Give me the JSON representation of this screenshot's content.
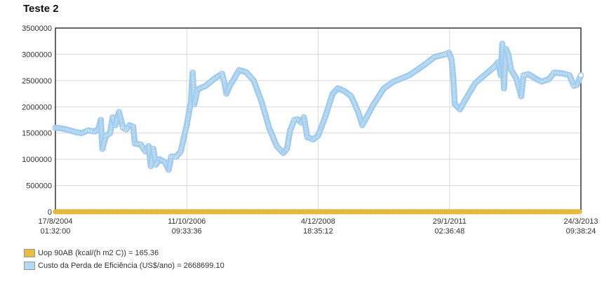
{
  "title": "Teste 2",
  "colors": {
    "series_uop": "#e8bd40",
    "series_custo": "#b5d9f5",
    "series_custo_stroke": "#9ecbf0",
    "axis": "#333333",
    "grid": "#d9d9d9"
  },
  "chart_data": {
    "type": "scatter",
    "title": "Teste 2",
    "xlabel": "",
    "ylabel": "",
    "ylim": [
      0,
      3500000
    ],
    "yticks": [
      "0",
      "500000",
      "1000000",
      "1500000",
      "2000000",
      "2500000",
      "3000000",
      "3500000"
    ],
    "yticks_values": [
      0,
      500000,
      1000000,
      1500000,
      2000000,
      2500000,
      3000000,
      3500000
    ],
    "xlim": [
      "2004-08-17",
      "2013-03-24"
    ],
    "xticks": [
      {
        "date": "2004-08-17",
        "line1": "17/8/2004",
        "line2": "01:32:00"
      },
      {
        "date": "2006-10-11",
        "line1": "11/10/2006",
        "line2": "09:33:36"
      },
      {
        "date": "2008-12-04",
        "line1": "4/12/2008",
        "line2": "18:35:12"
      },
      {
        "date": "2011-01-29",
        "line1": "29/1/2011",
        "line2": "02:36:48"
      },
      {
        "date": "2013-03-24",
        "line1": "24/3/2013",
        "line2": "09:38:24"
      }
    ],
    "grid": true,
    "legend_position": "bottom-left",
    "series": [
      {
        "name": "Uop 90AB (kcal/(h m2 C)) = 165.36",
        "y_constant": 165.36
      },
      {
        "name": "Custo da Perda de Eficiência (US$/ano) = 2668699.10",
        "points": [
          [
            "2004-08-17",
            1600000
          ],
          [
            "2004-09-20",
            1590000
          ],
          [
            "2004-11-01",
            1560000
          ],
          [
            "2004-12-15",
            1520000
          ],
          [
            "2005-01-20",
            1500000
          ],
          [
            "2005-03-01",
            1550000
          ],
          [
            "2005-04-10",
            1530000
          ],
          [
            "2005-05-01",
            1580000
          ],
          [
            "2005-05-15",
            1750000
          ],
          [
            "2005-05-25",
            1200000
          ],
          [
            "2005-06-15",
            1450000
          ],
          [
            "2005-07-10",
            1500000
          ],
          [
            "2005-07-25",
            1800000
          ],
          [
            "2005-08-10",
            1650000
          ],
          [
            "2005-09-01",
            1900000
          ],
          [
            "2005-09-25",
            1600000
          ],
          [
            "2005-10-15",
            1570000
          ],
          [
            "2005-11-01",
            1650000
          ],
          [
            "2005-11-25",
            1620000
          ],
          [
            "2005-12-05",
            1300000
          ],
          [
            "2006-01-10",
            1280000
          ],
          [
            "2006-02-05",
            1150000
          ],
          [
            "2006-02-25",
            1250000
          ],
          [
            "2006-03-10",
            870000
          ],
          [
            "2006-03-25",
            1200000
          ],
          [
            "2006-04-10",
            900000
          ],
          [
            "2006-05-01",
            1000000
          ],
          [
            "2006-06-01",
            950000
          ],
          [
            "2006-06-25",
            800000
          ],
          [
            "2006-07-10",
            1050000
          ],
          [
            "2006-08-10",
            1050000
          ],
          [
            "2006-09-05",
            1150000
          ],
          [
            "2006-10-11",
            1650000
          ],
          [
            "2006-11-05",
            2100000
          ],
          [
            "2006-11-15",
            2650000
          ],
          [
            "2006-11-25",
            2050000
          ],
          [
            "2006-12-15",
            2330000
          ],
          [
            "2007-02-01",
            2400000
          ],
          [
            "2007-04-01",
            2550000
          ],
          [
            "2007-05-10",
            2630000
          ],
          [
            "2007-05-25",
            2450000
          ],
          [
            "2007-06-05",
            2250000
          ],
          [
            "2007-06-25",
            2400000
          ],
          [
            "2007-07-15",
            2500000
          ],
          [
            "2007-08-20",
            2700000
          ],
          [
            "2007-10-01",
            2660000
          ],
          [
            "2007-11-15",
            2500000
          ],
          [
            "2008-01-01",
            2100000
          ],
          [
            "2008-02-15",
            1600000
          ],
          [
            "2008-04-01",
            1250000
          ],
          [
            "2008-05-10",
            1120000
          ],
          [
            "2008-06-01",
            1200000
          ],
          [
            "2008-06-20",
            1550000
          ],
          [
            "2008-07-15",
            1750000
          ],
          [
            "2008-08-05",
            1760000
          ],
          [
            "2008-08-25",
            1700000
          ],
          [
            "2008-09-10",
            1800000
          ],
          [
            "2008-10-01",
            1420000
          ],
          [
            "2008-11-05",
            1380000
          ],
          [
            "2008-12-04",
            1450000
          ],
          [
            "2009-01-15",
            1800000
          ],
          [
            "2009-03-01",
            2250000
          ],
          [
            "2009-04-01",
            2350000
          ],
          [
            "2009-05-10",
            2300000
          ],
          [
            "2009-06-20",
            2200000
          ],
          [
            "2009-08-01",
            1900000
          ],
          [
            "2009-08-25",
            1650000
          ],
          [
            "2009-09-20",
            1800000
          ],
          [
            "2009-11-01",
            2050000
          ],
          [
            "2010-01-01",
            2350000
          ],
          [
            "2010-03-01",
            2480000
          ],
          [
            "2010-06-01",
            2600000
          ],
          [
            "2010-09-01",
            2800000
          ],
          [
            "2010-11-01",
            2950000
          ],
          [
            "2011-01-05",
            3000000
          ],
          [
            "2011-01-25",
            3030000
          ],
          [
            "2011-02-10",
            2900000
          ],
          [
            "2011-02-20",
            2550000
          ],
          [
            "2011-03-01",
            2050000
          ],
          [
            "2011-04-01",
            1950000
          ],
          [
            "2011-05-15",
            2200000
          ],
          [
            "2011-07-01",
            2450000
          ],
          [
            "2011-09-01",
            2620000
          ],
          [
            "2011-10-20",
            2750000
          ],
          [
            "2011-11-15",
            2850000
          ],
          [
            "2011-12-01",
            2600000
          ],
          [
            "2011-12-10",
            3200000
          ],
          [
            "2011-12-20",
            2350000
          ],
          [
            "2012-01-01",
            3100000
          ],
          [
            "2012-01-15",
            3000000
          ],
          [
            "2012-02-01",
            2700000
          ],
          [
            "2012-03-01",
            2550000
          ],
          [
            "2012-03-20",
            2350000
          ],
          [
            "2012-04-01",
            2200000
          ],
          [
            "2012-04-15",
            2600000
          ],
          [
            "2012-05-15",
            2620000
          ],
          [
            "2012-07-01",
            2530000
          ],
          [
            "2012-08-01",
            2480000
          ],
          [
            "2012-09-15",
            2530000
          ],
          [
            "2012-10-15",
            2650000
          ],
          [
            "2012-12-01",
            2640000
          ],
          [
            "2013-01-15",
            2600000
          ],
          [
            "2013-02-10",
            2400000
          ],
          [
            "2013-03-01",
            2420000
          ],
          [
            "2013-03-24",
            2600000
          ]
        ]
      }
    ]
  }
}
